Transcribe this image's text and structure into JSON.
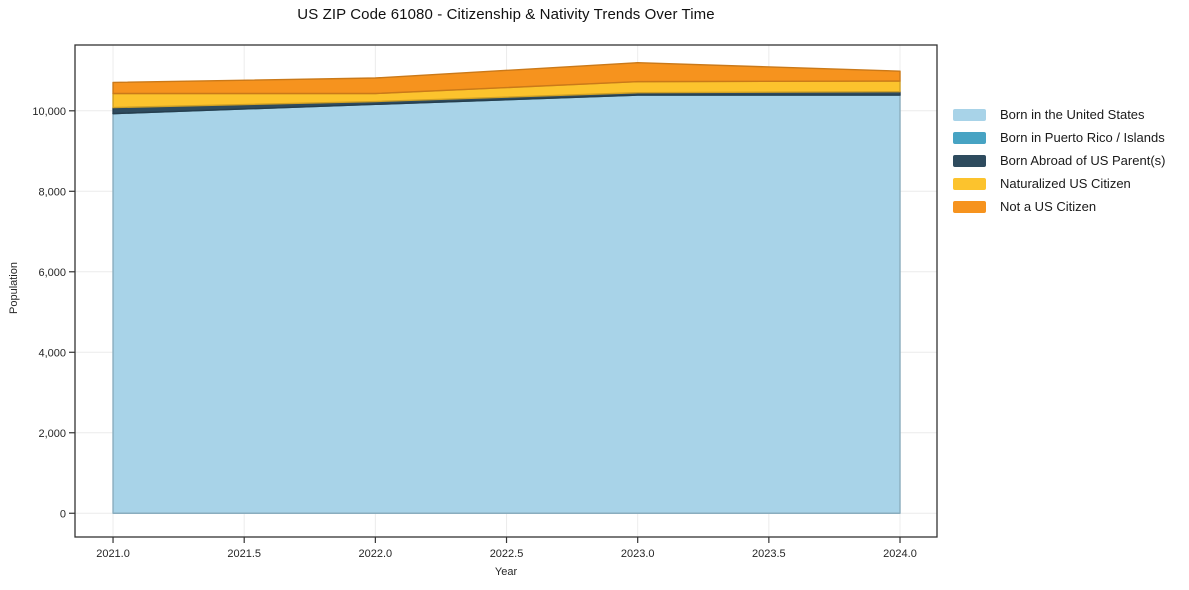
{
  "page": {
    "background": "#ffffff"
  },
  "chart_data": {
    "type": "area",
    "stacked": true,
    "title": "US ZIP Code 61080 - Citizenship & Nativity Trends Over Time",
    "xlabel": "Year",
    "ylabel": "Population",
    "x": [
      2021,
      2022,
      2023,
      2024
    ],
    "series": [
      {
        "name": "Born in the United States",
        "color": "#a8d3e8",
        "values": [
          9930,
          10160,
          10390,
          10390
        ]
      },
      {
        "name": "Born in Puerto Rico / Islands",
        "color": "#47a3c3",
        "values": [
          0,
          0,
          0,
          0
        ]
      },
      {
        "name": "Born Abroad of US Parent(s)",
        "color": "#2e4b5e",
        "values": [
          150,
          70,
          60,
          85
        ]
      },
      {
        "name": "Naturalized US Citizen",
        "color": "#fcc32d",
        "values": [
          350,
          200,
          275,
          265
        ]
      },
      {
        "name": "Not a US Citizen",
        "color": "#f6931e",
        "values": [
          275,
          385,
          470,
          245
        ]
      }
    ],
    "totals": [
      10705,
      10815,
      11195,
      10985
    ],
    "xticks": {
      "values": [
        2021.0,
        2021.5,
        2022.0,
        2022.5,
        2023.0,
        2023.5,
        2024.0
      ],
      "labels": [
        "2021.0",
        "2021.5",
        "2022.0",
        "2022.5",
        "2023.0",
        "2023.5",
        "2024.0"
      ]
    },
    "yticks": {
      "values": [
        0,
        2000,
        4000,
        6000,
        8000,
        10000
      ],
      "labels": [
        "0",
        "2,000",
        "4,000",
        "6,000",
        "8,000",
        "10,000"
      ]
    },
    "xlim": [
      2020.855,
      2024.141
    ],
    "ylim": [
      -590,
      11635
    ],
    "grid": true,
    "legend_position": "right-outside",
    "style": {
      "grid_color": "#ececec",
      "spine_color": "#333333",
      "tick_text_color": "#262626",
      "background": "#ffffff"
    }
  }
}
